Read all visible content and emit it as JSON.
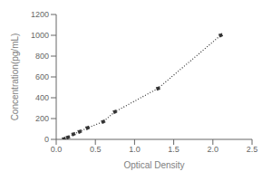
{
  "chart_data": {
    "type": "line",
    "title": "",
    "xlabel": "Optical Density",
    "ylabel": "Concentration(pg/mL)",
    "x": [
      0.1,
      0.15,
      0.22,
      0.3,
      0.4,
      0.6,
      0.75,
      1.3,
      2.1
    ],
    "values": [
      5,
      20,
      50,
      75,
      110,
      170,
      265,
      490,
      1000
    ],
    "xlim": [
      0,
      2.5
    ],
    "ylim": [
      0,
      1200
    ],
    "xticks": [
      {
        "value": 0,
        "label": "0.0"
      },
      {
        "value": 0.5,
        "label": "0.5"
      },
      {
        "value": 1,
        "label": "1.0"
      },
      {
        "value": 1.5,
        "label": "1.5"
      },
      {
        "value": 2,
        "label": "2.0"
      },
      {
        "value": 2.5,
        "label": "2.5"
      }
    ],
    "yticks": [
      0,
      200,
      400,
      600,
      800,
      1000,
      1200
    ],
    "color": "#333333",
    "marker": "circle",
    "line_style": "dotted",
    "grid": false
  }
}
